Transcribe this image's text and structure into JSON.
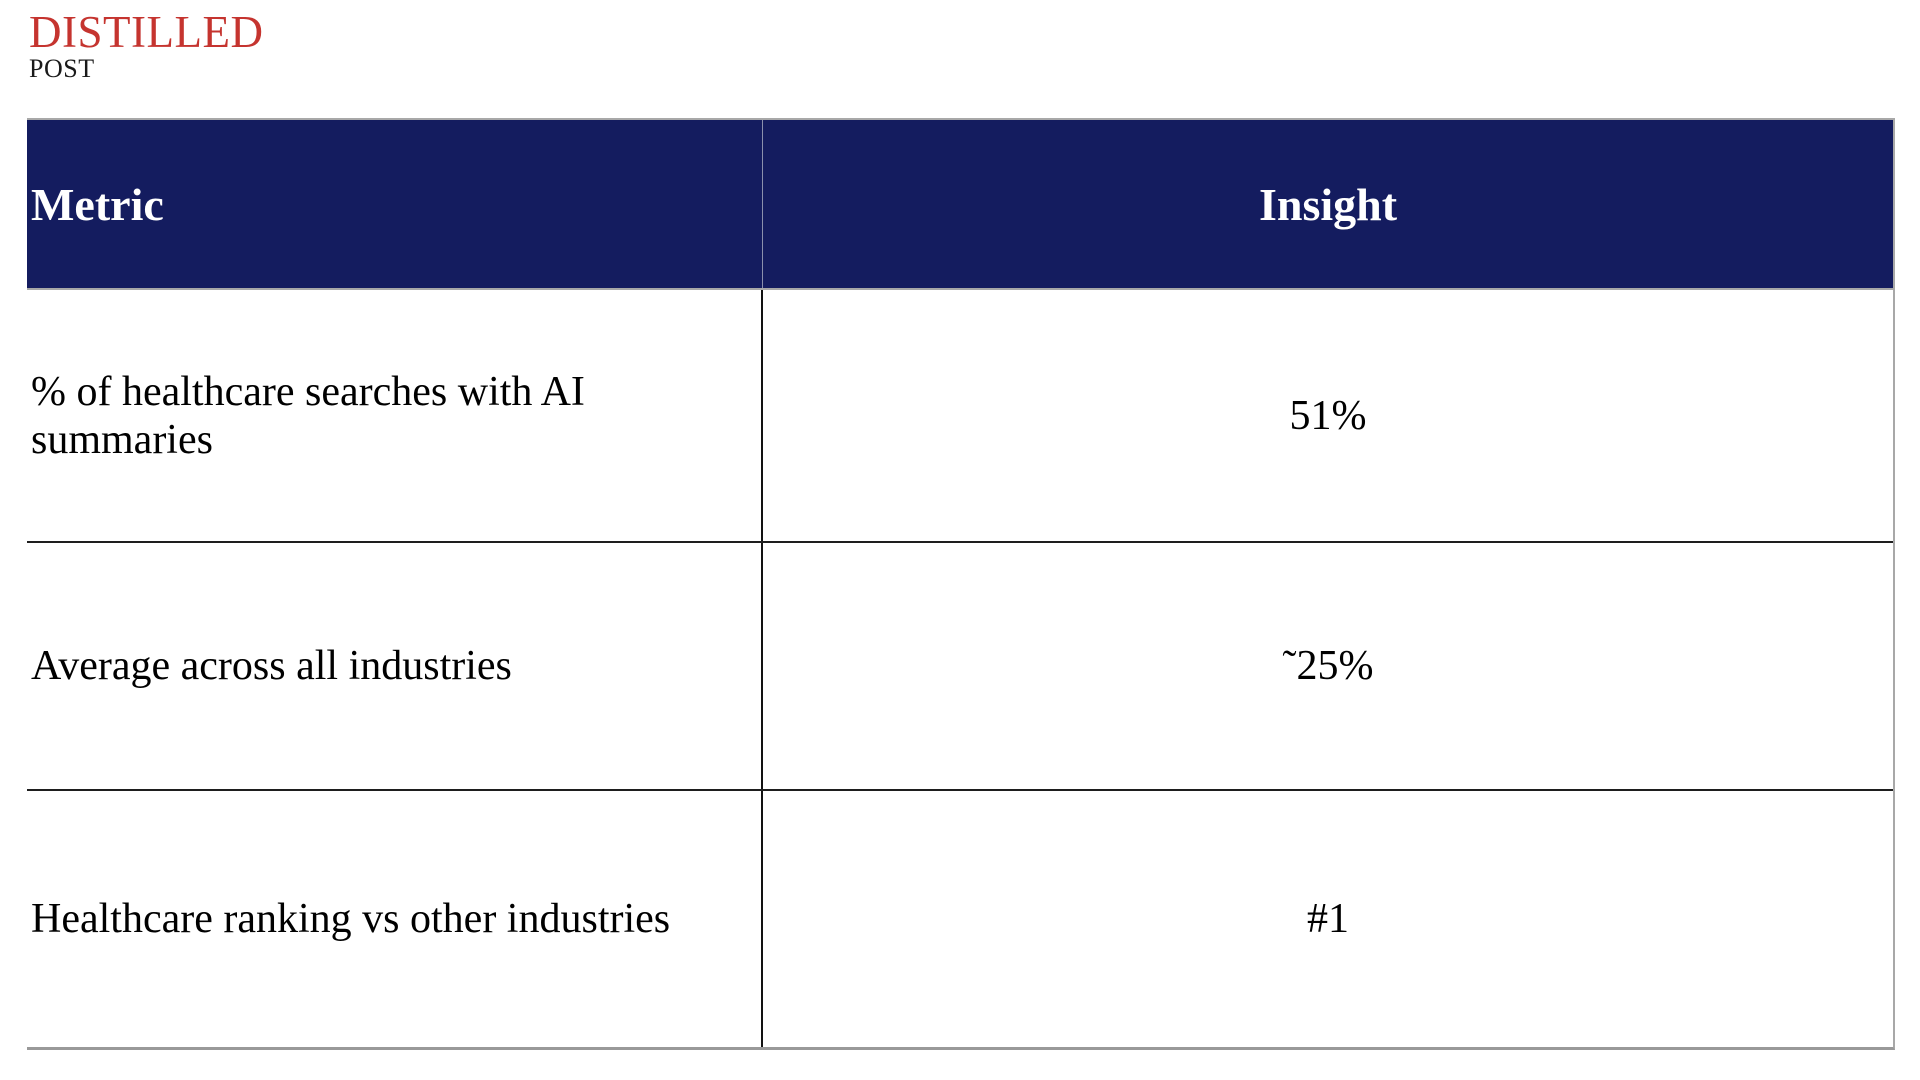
{
  "brand": {
    "title": "DISTILLED",
    "subtitle": "POST",
    "title_color": "#C5342F",
    "subtitle_color": "#1a1a1a"
  },
  "table": {
    "header_bg_color": "#141C5F",
    "header_text_color": "#ffffff",
    "outer_border_color": "#a8a8a8",
    "inner_line_color": "#1e1e1e",
    "columns": [
      {
        "label": "Metric",
        "align": "left"
      },
      {
        "label": "Insight",
        "align": "center"
      }
    ],
    "rows": [
      {
        "metric": "% of healthcare searches with AI summaries",
        "insight": "51%"
      },
      {
        "metric": "Average across all industries",
        "insight": "˜25%"
      },
      {
        "metric": "Healthcare ranking vs other industries",
        "insight": "#1"
      }
    ]
  },
  "chart_data": {
    "type": "table",
    "title": "",
    "columns": [
      "Metric",
      "Insight"
    ],
    "rows": [
      [
        "% of healthcare searches with AI summaries",
        "51%"
      ],
      [
        "Average across all industries",
        "˜25%"
      ],
      [
        "Healthcare ranking vs other industries",
        "#1"
      ]
    ]
  }
}
